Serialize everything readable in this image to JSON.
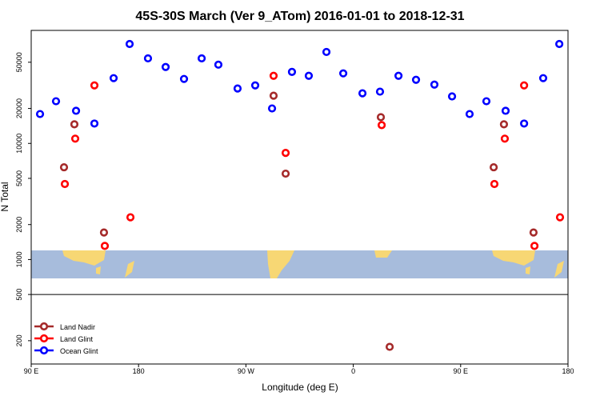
{
  "chart_data": {
    "type": "scatter",
    "title": "45S-30S March (Ver 9_ATom)   2016-01-01 to 2018-12-31",
    "x_label": "Longitude (deg E)",
    "y_label": "N Total",
    "xlim": [
      90,
      540
    ],
    "xticks": [
      {
        "value": 90,
        "label": "90 E"
      },
      180,
      {
        "value": 270,
        "label": "90 W"
      },
      {
        "value": 360,
        "label": "0"
      },
      {
        "value": 450,
        "label": "90 E"
      },
      {
        "value": 540,
        "label": "180"
      }
    ],
    "ylim": [
      126,
      94000
    ],
    "log_y": true,
    "yticks": [
      200,
      500,
      1000,
      2000,
      5000,
      10000,
      20000,
      50000
    ],
    "legend": "bottom-left",
    "series": [
      {
        "name": "Land Nadir",
        "color": "#a52a2a",
        "x": [
          117.5,
          126.2,
          151,
          293.2,
          303.3,
          383.1,
          390.5,
          477.7,
          486.3,
          511.1
        ],
        "values": [
          6230,
          14600,
          1710,
          25760,
          5490,
          16830,
          177,
          6230,
          14600,
          1710
        ]
      },
      {
        "name": "Land Glint",
        "color": "#ff0000",
        "x": [
          118.2,
          126.9,
          143,
          151.7,
          173.2,
          293.2,
          303.3,
          383.8,
          478.3,
          487,
          503.2,
          511.9,
          533.3
        ],
        "values": [
          4470,
          10990,
          31600,
          1310,
          2310,
          38200,
          8280,
          14380,
          4470,
          10990,
          31600,
          1310,
          2310
        ]
      },
      {
        "name": "Ocean Glint",
        "color": "#0000ff",
        "x": [
          97.4,
          110.8,
          127.6,
          143,
          159.1,
          172.5,
          187.9,
          202.7,
          218.1,
          232.9,
          246.9,
          263,
          277.8,
          291.9,
          308.6,
          322.7,
          337.5,
          351.6,
          367.7,
          382.4,
          397.9,
          412.6,
          428,
          442.8,
          457.5,
          471.6,
          487.7,
          503.2,
          519.2,
          532.7
        ],
        "values": [
          17900,
          23070,
          19100,
          14830,
          36470,
          71800,
          54000,
          45500,
          35900,
          54000,
          47650,
          29700,
          31600,
          20000,
          41300,
          38200,
          61300,
          40100,
          27000,
          27900,
          38200,
          35300,
          32100,
          25400,
          17900,
          23070,
          19100,
          14830,
          36470,
          71800
        ]
      }
    ]
  }
}
